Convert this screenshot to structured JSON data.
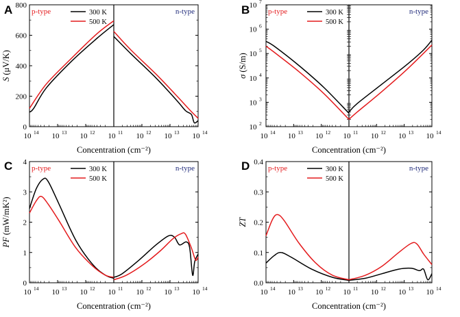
{
  "chart_data": [
    {
      "panel": "A",
      "type": "line",
      "ylabel_sym": "S",
      "ylabel_unit": "(μV/K)",
      "xlabel": "Concentration (cm⁻²)",
      "yscale": "linear",
      "ylim": [
        0,
        800
      ],
      "yticks": [
        "0",
        "200",
        "400",
        "600",
        "800"
      ],
      "xticks_left": [
        "10",
        "10",
        "10"
      ],
      "xticks_left_exp": [
        "14",
        "13",
        "12"
      ],
      "xtick_mid": "10",
      "xtick_mid_exp": "11",
      "xticks_right": [
        "10",
        "10",
        "10"
      ],
      "xticks_right_exp": [
        "12",
        "13",
        "14"
      ],
      "left_label": "p-type",
      "right_label": "n-type",
      "legend": [
        "300 K",
        "500 K"
      ],
      "series": [
        {
          "name": "300 K",
          "color": "#000000",
          "left": [
            [
              0,
              95
            ],
            [
              0.05,
              120
            ],
            [
              0.2,
              255
            ],
            [
              0.5,
              430
            ],
            [
              0.8,
              580
            ],
            [
              1,
              670
            ]
          ],
          "right": [
            [
              0,
              592
            ],
            [
              0.2,
              480
            ],
            [
              0.5,
              320
            ],
            [
              0.75,
              170
            ],
            [
              0.85,
              105
            ],
            [
              0.92,
              80
            ],
            [
              0.955,
              25
            ],
            [
              1,
              40
            ]
          ]
        },
        {
          "name": "500 K",
          "color": "#e41a1c",
          "left": [
            [
              0,
              120
            ],
            [
              0.2,
              280
            ],
            [
              0.5,
              450
            ],
            [
              0.8,
              610
            ],
            [
              1,
              695
            ]
          ],
          "right": [
            [
              0,
              625
            ],
            [
              0.2,
              505
            ],
            [
              0.5,
              345
            ],
            [
              0.75,
              200
            ],
            [
              0.9,
              110
            ],
            [
              1,
              55
            ]
          ]
        }
      ]
    },
    {
      "panel": "B",
      "type": "line",
      "ylabel_sym": "σ",
      "ylabel_unit": "(S/m)",
      "xlabel": "Concentration (cm⁻²)",
      "yscale": "log",
      "ylim": [
        2,
        7
      ],
      "yticks": [
        "10",
        "10",
        "10",
        "10",
        "10",
        "10"
      ],
      "yticks_exp": [
        "2",
        "3",
        "4",
        "5",
        "6",
        "7"
      ],
      "xticks_left": [
        "10",
        "10",
        "10"
      ],
      "xticks_left_exp": [
        "14",
        "13",
        "12"
      ],
      "xtick_mid": "10",
      "xtick_mid_exp": "11",
      "xticks_right": [
        "10",
        "10",
        "10"
      ],
      "xticks_right_exp": [
        "12",
        "13",
        "14"
      ],
      "left_label": "p-type",
      "right_label": "n-type",
      "legend": [
        "300 K",
        "500 K"
      ],
      "series": [
        {
          "name": "300 K",
          "color": "#000000",
          "left": [
            [
              0,
              5.5
            ],
            [
              0.1,
              5.3
            ],
            [
              0.4,
              4.5
            ],
            [
              0.7,
              3.6
            ],
            [
              1,
              2.55
            ]
          ],
          "right": [
            [
              0,
              2.6
            ],
            [
              0.1,
              2.95
            ],
            [
              0.4,
              3.75
            ],
            [
              0.7,
              4.55
            ],
            [
              0.9,
              5.15
            ],
            [
              1,
              5.55
            ]
          ]
        },
        {
          "name": "500 K",
          "color": "#e41a1c",
          "left": [
            [
              0,
              5.3
            ],
            [
              0.1,
              5.05
            ],
            [
              0.4,
              4.25
            ],
            [
              0.7,
              3.35
            ],
            [
              1,
              2.3
            ]
          ],
          "right": [
            [
              0,
              2.3
            ],
            [
              0.1,
              2.6
            ],
            [
              0.4,
              3.45
            ],
            [
              0.7,
              4.35
            ],
            [
              1,
              5.35
            ]
          ]
        }
      ]
    },
    {
      "panel": "C",
      "type": "line",
      "ylabel_sym": "PF",
      "ylabel_unit": "(mW/mK²)",
      "xlabel": "Concentration (cm⁻²)",
      "yscale": "linear",
      "ylim": [
        0,
        4
      ],
      "yticks": [
        "0",
        "1",
        "2",
        "3",
        "4"
      ],
      "xticks_left": [
        "10",
        "10",
        "10"
      ],
      "xticks_left_exp": [
        "14",
        "13",
        "12"
      ],
      "xtick_mid": "10",
      "xtick_mid_exp": "11",
      "xticks_right": [
        "10",
        "10",
        "10"
      ],
      "xticks_right_exp": [
        "12",
        "13",
        "14"
      ],
      "left_label": "p-type",
      "right_label": "n-type",
      "legend": [
        "300 K",
        "500 K"
      ],
      "series": [
        {
          "name": "300 K",
          "color": "#000000",
          "left": [
            [
              0,
              2.45
            ],
            [
              0.08,
              3.1
            ],
            [
              0.16,
              3.42
            ],
            [
              0.22,
              3.35
            ],
            [
              0.35,
              2.6
            ],
            [
              0.55,
              1.4
            ],
            [
              0.75,
              0.6
            ],
            [
              0.9,
              0.25
            ],
            [
              1,
              0.15
            ]
          ],
          "right": [
            [
              0,
              0.18
            ],
            [
              0.1,
              0.3
            ],
            [
              0.3,
              0.75
            ],
            [
              0.5,
              1.25
            ],
            [
              0.65,
              1.55
            ],
            [
              0.72,
              1.5
            ],
            [
              0.78,
              1.25
            ],
            [
              0.86,
              1.35
            ],
            [
              0.9,
              1.15
            ],
            [
              0.935,
              0.25
            ],
            [
              0.96,
              0.7
            ],
            [
              1,
              0.95
            ]
          ]
        },
        {
          "name": "500 K",
          "color": "#e41a1c",
          "left": [
            [
              0,
              2.3
            ],
            [
              0.08,
              2.7
            ],
            [
              0.14,
              2.85
            ],
            [
              0.22,
              2.6
            ],
            [
              0.35,
              2.05
            ],
            [
              0.55,
              1.15
            ],
            [
              0.75,
              0.55
            ],
            [
              0.9,
              0.25
            ],
            [
              1,
              0.18
            ]
          ],
          "right": [
            [
              0,
              0.1
            ],
            [
              0.15,
              0.25
            ],
            [
              0.35,
              0.6
            ],
            [
              0.55,
              1.05
            ],
            [
              0.7,
              1.45
            ],
            [
              0.8,
              1.62
            ],
            [
              0.85,
              1.6
            ],
            [
              0.92,
              1.15
            ],
            [
              0.97,
              0.75
            ],
            [
              1,
              0.85
            ]
          ]
        }
      ]
    },
    {
      "panel": "D",
      "type": "line",
      "ylabel_sym": "ZT",
      "ylabel_unit": "",
      "xlabel": "Concentration (cm⁻²)",
      "yscale": "linear",
      "ylim": [
        0,
        0.4
      ],
      "yticks": [
        "0.0",
        "0.1",
        "0.2",
        "0.3",
        "0.4"
      ],
      "xticks_left": [
        "10",
        "10",
        "10"
      ],
      "xticks_left_exp": [
        "14",
        "13",
        "12"
      ],
      "xtick_mid": "10",
      "xtick_mid_exp": "11",
      "xticks_right": [
        "10",
        "10",
        "10"
      ],
      "xticks_right_exp": [
        "12",
        "13",
        "14"
      ],
      "left_label": "p-type",
      "right_label": "n-type",
      "legend": [
        "300 K",
        "500 K"
      ],
      "series": [
        {
          "name": "300 K",
          "color": "#000000",
          "left": [
            [
              0,
              0.065
            ],
            [
              0.1,
              0.09
            ],
            [
              0.18,
              0.1
            ],
            [
              0.3,
              0.085
            ],
            [
              0.55,
              0.045
            ],
            [
              0.8,
              0.018
            ],
            [
              1,
              0.008
            ]
          ],
          "right": [
            [
              0,
              0.008
            ],
            [
              0.2,
              0.015
            ],
            [
              0.4,
              0.03
            ],
            [
              0.6,
              0.045
            ],
            [
              0.75,
              0.048
            ],
            [
              0.85,
              0.04
            ],
            [
              0.9,
              0.045
            ],
            [
              0.95,
              0.01
            ],
            [
              1,
              0.03
            ]
          ]
        },
        {
          "name": "500 K",
          "color": "#e41a1c",
          "left": [
            [
              0,
              0.155
            ],
            [
              0.08,
              0.21
            ],
            [
              0.14,
              0.225
            ],
            [
              0.22,
              0.205
            ],
            [
              0.4,
              0.13
            ],
            [
              0.6,
              0.065
            ],
            [
              0.8,
              0.025
            ],
            [
              1,
              0.01
            ]
          ],
          "right": [
            [
              0,
              0.01
            ],
            [
              0.2,
              0.025
            ],
            [
              0.4,
              0.055
            ],
            [
              0.6,
              0.1
            ],
            [
              0.75,
              0.13
            ],
            [
              0.82,
              0.128
            ],
            [
              0.9,
              0.095
            ],
            [
              1,
              0.06
            ]
          ]
        }
      ]
    }
  ]
}
